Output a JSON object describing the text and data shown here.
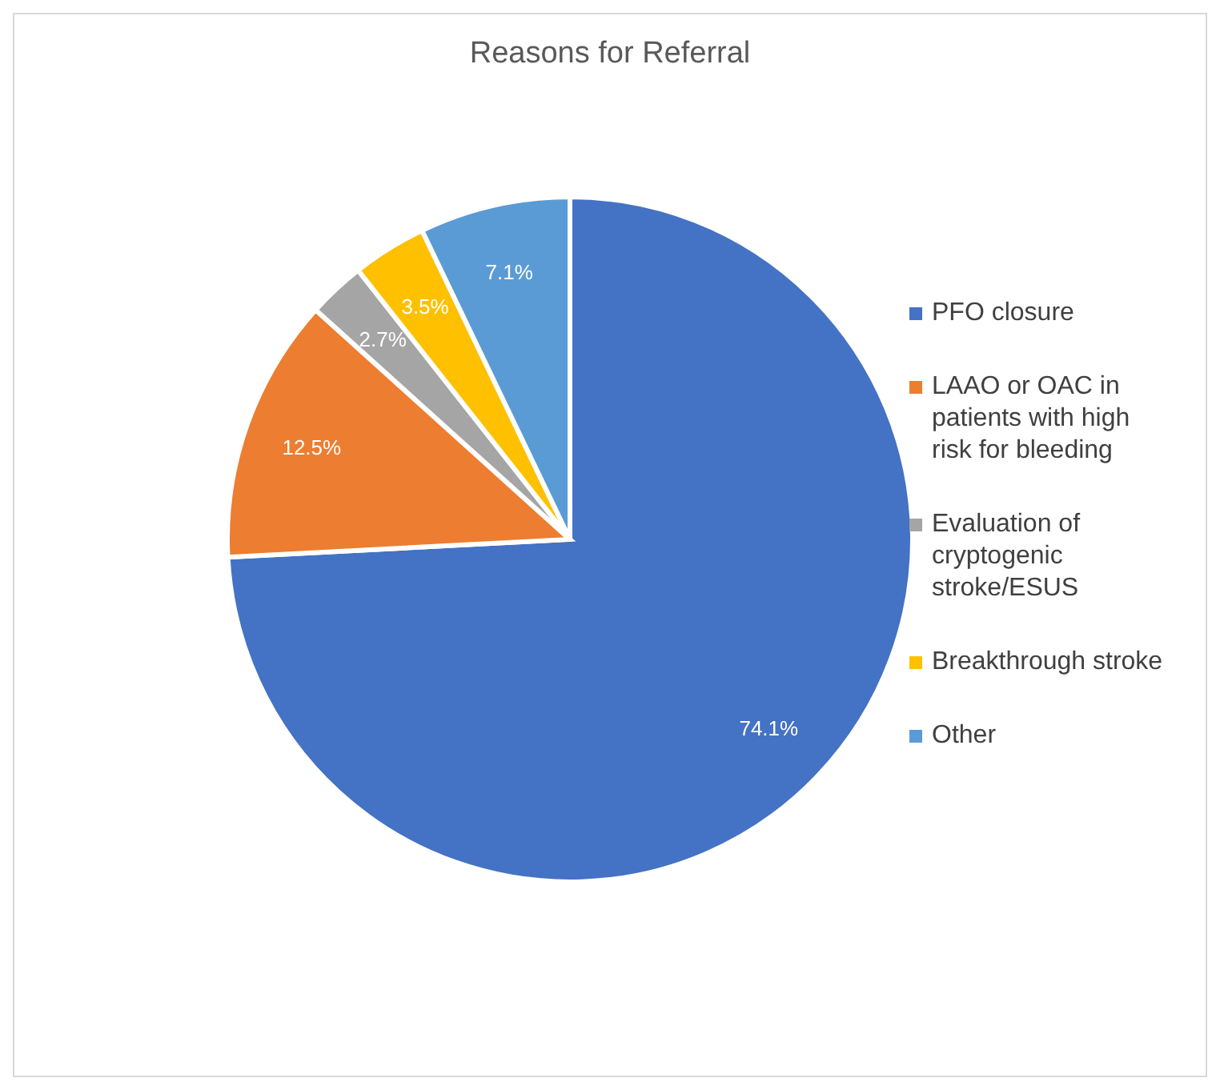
{
  "chart_data": {
    "type": "pie",
    "title": "Reasons for Referral",
    "categories": [
      "PFO closure",
      "LAAO or OAC in patients with high risk for bleeding",
      "Evaluation of cryptogenic stroke/ESUS",
      "Breakthrough stroke",
      "Other"
    ],
    "values": [
      74.1,
      12.5,
      2.7,
      3.5,
      7.1
    ],
    "colors": [
      "#4472c4",
      "#ed7d31",
      "#a5a5a5",
      "#ffc000",
      "#5b9bd5"
    ],
    "value_labels": [
      "74.1%",
      "12.5%",
      "2.7%",
      "3.5%",
      "7.1%"
    ],
    "legend": "right"
  }
}
